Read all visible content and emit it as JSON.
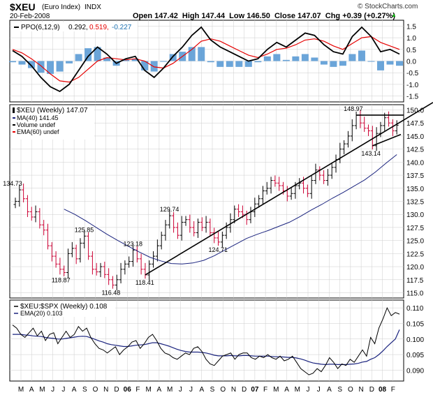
{
  "header": {
    "symbol": "$XEU",
    "name": "(Euro Index)",
    "exchange": "INDX",
    "date": "20-Feb-2008",
    "credit": "© StockCharts.com",
    "ohlc_text": "Open 147.42  High 147.44  Low 146.50  Close 147.07  Chg +0.39 (+0.27%)",
    "chg_label": "▲"
  },
  "colors": {
    "price_up": "#000000",
    "price_down": "#cc0033",
    "ma": "#1a237e",
    "ema": "#e60000",
    "histogram": "#5b9bd5",
    "ratio_line": "#000000",
    "grid": "#cccccc"
  },
  "chart_data": [
    {
      "type": "line",
      "panel": "PPO",
      "legend": "PPO(6,12,9) 0.292, 0.519, -0.227",
      "legend_parts": [
        "PPO(6,12,9)",
        "0.292,",
        "0.519,",
        "-0.227"
      ],
      "ylim": [
        -1.75,
        1.75
      ],
      "yticks": [
        1.5,
        1.0,
        0.5,
        0.0,
        -0.5,
        -1.0,
        -1.5
      ],
      "ytick_labels": [
        "1.5",
        "1.0",
        "0.5",
        "0.0",
        "-0.5",
        "-1.0",
        "-1.5"
      ],
      "series": [
        {
          "name": "PPO",
          "values": [
            0.45,
            0.2,
            -0.2,
            -0.7,
            -1.1,
            -1.3,
            -1.0,
            -0.4,
            0.2,
            0.6,
            0.3,
            -0.1,
            0.1,
            0.2,
            -0.4,
            -0.7,
            -0.3,
            0.2,
            0.6,
            1.1,
            1.45,
            0.9,
            0.6,
            0.4,
            0.2,
            0.0,
            0.1,
            0.5,
            0.8,
            0.6,
            0.9,
            1.2,
            1.1,
            0.7,
            0.4,
            0.3,
            1.05,
            1.45,
            1.05,
            0.4,
            0.5,
            0.3
          ]
        },
        {
          "name": "Signal",
          "values": [
            0.5,
            0.35,
            0.1,
            -0.2,
            -0.55,
            -0.85,
            -0.9,
            -0.7,
            -0.35,
            0.0,
            0.15,
            0.1,
            0.05,
            0.1,
            0.0,
            -0.25,
            -0.3,
            -0.1,
            0.2,
            0.5,
            0.85,
            0.95,
            0.85,
            0.65,
            0.45,
            0.25,
            0.15,
            0.3,
            0.5,
            0.55,
            0.7,
            0.9,
            0.95,
            0.85,
            0.65,
            0.5,
            0.75,
            1.0,
            1.05,
            0.8,
            0.65,
            0.5
          ]
        },
        {
          "name": "Histogram",
          "values": [
            -0.05,
            -0.15,
            -0.3,
            -0.5,
            -0.55,
            -0.45,
            -0.1,
            0.3,
            0.55,
            0.6,
            0.15,
            -0.2,
            0.05,
            0.1,
            -0.4,
            -0.45,
            0.0,
            0.3,
            0.4,
            0.6,
            0.6,
            -0.05,
            -0.25,
            -0.25,
            -0.25,
            -0.25,
            -0.05,
            0.2,
            0.3,
            0.05,
            0.2,
            0.3,
            0.15,
            -0.15,
            -0.25,
            -0.2,
            0.3,
            0.45,
            0.0,
            -0.4,
            -0.15,
            -0.2
          ]
        }
      ]
    },
    {
      "type": "bar",
      "panel": "Price",
      "subtype": "ohlc",
      "legend": "$XEU (Weekly) 147.07",
      "legend_items": [
        "MA(40) 141.45",
        "Volume undef",
        "EMA(60) undef"
      ],
      "ylim": [
        114,
        151
      ],
      "yticks": [
        150,
        147.5,
        145,
        142.5,
        140,
        137.5,
        135,
        132.5,
        130,
        127.5,
        125,
        122.5,
        120,
        117.5,
        115
      ],
      "ytick_labels": [
        "150.0",
        "147.5",
        "145.0",
        "142.5",
        "140.0",
        "137.5",
        "135.0",
        "132.5",
        "130.0",
        "127.5",
        "125.0",
        "122.5",
        "120.0",
        "117.5",
        "115.0"
      ],
      "close": [
        132.5,
        134.7,
        133.0,
        130.5,
        129.5,
        130.5,
        128.0,
        127.0,
        124.0,
        122.0,
        120.5,
        119.5,
        118.87,
        122.5,
        123.5,
        121.5,
        124.5,
        125.85,
        122.0,
        119.5,
        119.0,
        120.0,
        118.5,
        117.5,
        116.48,
        117.5,
        119.5,
        120.5,
        121.0,
        123.18,
        121.5,
        119.5,
        118.41,
        120.5,
        122.0,
        124.0,
        126.0,
        128.0,
        129.74,
        127.5,
        126.0,
        128.5,
        129.0,
        127.5,
        126.5,
        128.5,
        127.5,
        128.5,
        126.5,
        125.5,
        124.71,
        126.0,
        127.5,
        129.0,
        131.0,
        130.5,
        130.0,
        129.0,
        130.5,
        132.0,
        133.0,
        134.5,
        135.0,
        136.5,
        136.0,
        135.5,
        134.5,
        133.5,
        134.0,
        135.5,
        136.0,
        135.0,
        134.0,
        136.5,
        138.5,
        137.5,
        136.5,
        137.5,
        139.0,
        140.5,
        142.5,
        143.5,
        145.0,
        147.0,
        148.97,
        147.5,
        146.5,
        146.0,
        143.14,
        145.5,
        147.0,
        148.5,
        147.5,
        146.0,
        147.07
      ],
      "annotations": [
        "134.73",
        "125.85",
        "118.87",
        "116.48",
        "123.18",
        "118.41",
        "129.74",
        "124.71",
        "148.97",
        "143.14"
      ],
      "ma40_values": [
        131.0,
        130.0,
        128.8,
        127.5,
        126.2,
        125.0,
        123.9,
        122.8,
        121.8,
        121.1,
        120.6,
        120.5,
        120.7,
        121.2,
        122.1,
        123.2,
        124.3,
        125.4,
        126.2,
        126.9,
        127.7,
        128.5,
        129.6,
        130.8,
        131.9,
        133.1,
        134.2,
        135.4,
        136.6,
        138.1,
        139.8,
        141.45
      ],
      "trendline_1": {
        "from": [
          118.0,
          118.41
        ],
        "to": [
          139.0,
          141.5
        ]
      },
      "trendline_2": {
        "from": [
          133.0,
          143.14
        ],
        "to": [
          147.5,
          145.0
        ]
      },
      "resistance": {
        "value": 149.0
      }
    },
    {
      "type": "line",
      "panel": "Ratio",
      "legend": "$XEU:$SPX (Weekly) 0.108",
      "legend_items": [
        "EMA(20) 0.103"
      ],
      "ylim": [
        0.0865,
        0.1125
      ],
      "yticks": [
        0.11,
        0.105,
        0.1,
        0.095,
        0.09
      ],
      "ytick_labels": [
        "0.110",
        "0.105",
        "0.100",
        "0.095",
        "0.090"
      ],
      "series": [
        {
          "name": "$XEU:$SPX",
          "values": [
            0.1045,
            0.1035,
            0.1015,
            0.1005,
            0.102,
            0.1035,
            0.101,
            0.1025,
            0.0995,
            0.1015,
            0.102,
            0.0985,
            0.1005,
            0.1025,
            0.1005,
            0.1015,
            0.104,
            0.1025,
            0.1035,
            0.1005,
            0.0985,
            0.097,
            0.0965,
            0.0955,
            0.0965,
            0.0975,
            0.095,
            0.0965,
            0.0975,
            0.099,
            0.0995,
            0.097,
            0.0985,
            0.1005,
            0.1015,
            0.0995,
            0.097,
            0.0955,
            0.095,
            0.094,
            0.0935,
            0.0945,
            0.0955,
            0.095,
            0.097,
            0.0975,
            0.096,
            0.0935,
            0.092,
            0.0915,
            0.093,
            0.0945,
            0.095,
            0.0955,
            0.0935,
            0.095,
            0.0955,
            0.0955,
            0.094,
            0.0935,
            0.0945,
            0.094,
            0.095,
            0.094,
            0.0935,
            0.0945,
            0.093,
            0.0935,
            0.0945,
            0.0925,
            0.0905,
            0.0895,
            0.0885,
            0.089,
            0.0905,
            0.0895,
            0.0915,
            0.094,
            0.0925,
            0.0905,
            0.092,
            0.0915,
            0.0935,
            0.0925,
            0.0945,
            0.0965,
            0.0945,
            0.1005,
            0.0985,
            0.1035,
            0.1065,
            0.11,
            0.1075,
            0.1085,
            0.108
          ]
        },
        {
          "name": "EMA(20)",
          "values": [
            0.1015,
            0.1015,
            0.1015,
            0.1013,
            0.1012,
            0.101,
            0.1009,
            0.1008,
            0.1005,
            0.1003,
            0.1002,
            0.1,
            0.1,
            0.1002,
            0.1004,
            0.1006,
            0.1008,
            0.1009,
            0.1008,
            0.1004,
            0.0999,
            0.0994,
            0.099,
            0.0985,
            0.0982,
            0.098,
            0.0978,
            0.0976,
            0.0976,
            0.0978,
            0.098,
            0.0981,
            0.0982,
            0.0985,
            0.0988,
            0.0988,
            0.0985,
            0.0981,
            0.0977,
            0.0972,
            0.0967,
            0.0963,
            0.096,
            0.0958,
            0.0958,
            0.0958,
            0.0957,
            0.0955,
            0.0952,
            0.0948,
            0.0946,
            0.0946,
            0.0946,
            0.0947,
            0.0946,
            0.0946,
            0.0947,
            0.0947,
            0.0946,
            0.0945,
            0.0945,
            0.0945,
            0.0945,
            0.0944,
            0.0943,
            0.0943,
            0.0942,
            0.0941,
            0.0941,
            0.0939,
            0.0936,
            0.0932,
            0.0927,
            0.0923,
            0.0921,
            0.0919,
            0.0918,
            0.0919,
            0.0919,
            0.0918,
            0.0918,
            0.0918,
            0.0919,
            0.092,
            0.0922,
            0.0926,
            0.0928,
            0.0935,
            0.094,
            0.095,
            0.0962,
            0.0976,
            0.0988,
            0.1,
            0.103
          ]
        }
      ]
    }
  ],
  "x_axis": {
    "labels": [
      "M",
      "A",
      "M",
      "J",
      "J",
      "A",
      "S",
      "O",
      "N",
      "D",
      "06",
      "F",
      "M",
      "A",
      "M",
      "J",
      "J",
      "A",
      "S",
      "O",
      "N",
      "D",
      "07",
      "F",
      "M",
      "A",
      "M",
      "J",
      "J",
      "A",
      "S",
      "O",
      "N",
      "D",
      "08",
      "F"
    ],
    "bold": [
      "06",
      "07",
      "08"
    ]
  }
}
